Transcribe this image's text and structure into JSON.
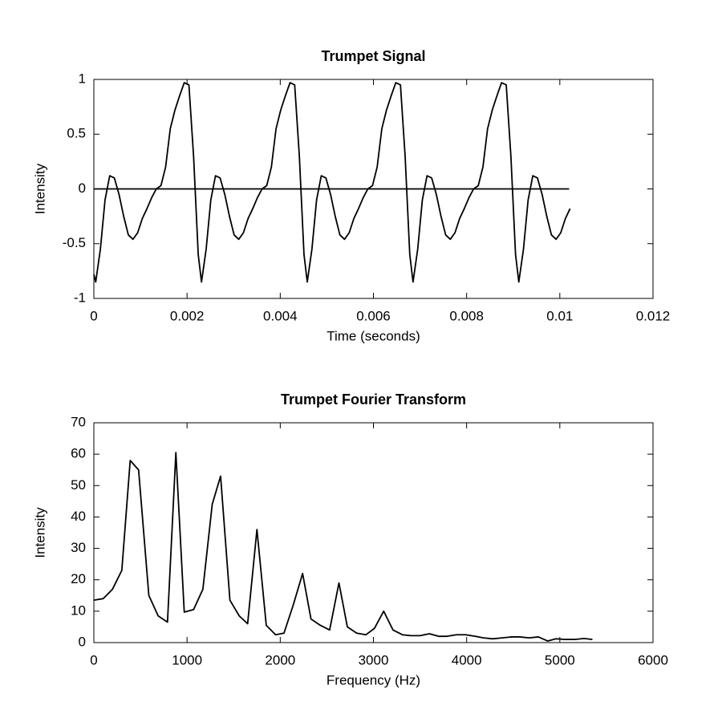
{
  "chart_data": [
    {
      "type": "line",
      "title": "Trumpet Signal",
      "x_label": "Time (seconds)",
      "y_label": "Intensity",
      "xlim": [
        0,
        0.012
      ],
      "ylim": [
        -1,
        1
      ],
      "xticks": [
        0,
        0.002,
        0.004,
        0.006,
        0.008,
        0.01,
        0.012
      ],
      "yticks": [
        -1,
        -0.5,
        0,
        0.5,
        1
      ],
      "series": [
        {
          "color": "#000000",
          "x": [
            0,
            4e-05,
            0.00014,
            0.00024,
            0.00034,
            0.00044,
            0.00054,
            0.00064,
            0.00074,
            0.00084,
            0.00094,
            0.00104,
            0.00114,
            0.00124,
            0.00134,
            0.00144,
            0.00154,
            0.00164,
            0.00174,
            0.00184,
            0.00194,
            0.00204,
            0.00214,
            0.00224,
            0.00231,
            0.00241,
            0.00251,
            0.00261,
            0.00271,
            0.00281,
            0.00291,
            0.00301,
            0.00311,
            0.00321,
            0.00331,
            0.00341,
            0.00351,
            0.00361,
            0.00371,
            0.00381,
            0.00391,
            0.00401,
            0.00411,
            0.00421,
            0.00431,
            0.00441,
            0.00451,
            0.00458,
            0.00468,
            0.00478,
            0.00488,
            0.00498,
            0.00508,
            0.00518,
            0.00528,
            0.00538,
            0.00548,
            0.00558,
            0.00568,
            0.00578,
            0.00588,
            0.00598,
            0.00608,
            0.00618,
            0.00628,
            0.00638,
            0.00648,
            0.00658,
            0.00668,
            0.00678,
            0.00685,
            0.00695,
            0.00705,
            0.00715,
            0.00725,
            0.00735,
            0.00745,
            0.00755,
            0.00765,
            0.00775,
            0.00785,
            0.00795,
            0.00805,
            0.00815,
            0.00825,
            0.00835,
            0.00845,
            0.00855,
            0.00865,
            0.00875,
            0.00885,
            0.00895,
            0.00905,
            0.00912,
            0.00922,
            0.00932,
            0.00942,
            0.00952,
            0.00962,
            0.00972,
            0.00982,
            0.00992,
            0.01002,
            0.01012,
            0.01022
          ],
          "values": [
            -0.78,
            -0.85,
            -0.55,
            -0.1,
            0.12,
            0.1,
            -0.05,
            -0.25,
            -0.42,
            -0.46,
            -0.4,
            -0.27,
            -0.18,
            -0.08,
            0,
            0.03,
            0.2,
            0.55,
            0.72,
            0.85,
            0.97,
            0.95,
            0.3,
            -0.6,
            -0.85,
            -0.55,
            -0.1,
            0.12,
            0.1,
            -0.05,
            -0.25,
            -0.42,
            -0.46,
            -0.4,
            -0.27,
            -0.18,
            -0.08,
            0,
            0.03,
            0.2,
            0.55,
            0.72,
            0.85,
            0.97,
            0.95,
            0.3,
            -0.6,
            -0.85,
            -0.55,
            -0.1,
            0.12,
            0.1,
            -0.05,
            -0.25,
            -0.42,
            -0.46,
            -0.4,
            -0.27,
            -0.18,
            -0.08,
            0,
            0.03,
            0.2,
            0.55,
            0.72,
            0.85,
            0.97,
            0.95,
            0.3,
            -0.6,
            -0.85,
            -0.55,
            -0.1,
            0.12,
            0.1,
            -0.05,
            -0.25,
            -0.42,
            -0.46,
            -0.4,
            -0.27,
            -0.18,
            -0.08,
            0,
            0.03,
            0.2,
            0.55,
            0.72,
            0.85,
            0.97,
            0.95,
            0.3,
            -0.6,
            -0.85,
            -0.55,
            -0.1,
            0.12,
            0.1,
            -0.05,
            -0.25,
            -0.42,
            -0.46,
            -0.4,
            -0.27,
            -0.18
          ]
        },
        {
          "color": "#000000",
          "x": [
            0,
            0.0102
          ],
          "values": [
            0,
            0
          ]
        }
      ]
    },
    {
      "type": "line",
      "title": "Trumpet Fourier Transform",
      "x_label": "Frequency (Hz)",
      "y_label": "Intensity",
      "xlim": [
        0,
        6000
      ],
      "ylim": [
        0,
        70
      ],
      "xticks": [
        0,
        1000,
        2000,
        3000,
        4000,
        5000,
        6000
      ],
      "yticks": [
        0,
        10,
        20,
        30,
        40,
        50,
        60,
        70
      ],
      "series": [
        {
          "color": "#000000",
          "x": [
            0,
            100,
            200,
            300,
            390,
            480,
            590,
            690,
            790,
            880,
            970,
            1070,
            1170,
            1270,
            1360,
            1460,
            1560,
            1650,
            1750,
            1850,
            1950,
            2040,
            2140,
            2240,
            2330,
            2430,
            2530,
            2630,
            2720,
            2820,
            2920,
            3010,
            3110,
            3210,
            3310,
            3400,
            3500,
            3600,
            3700,
            3790,
            3890,
            3990,
            4090,
            4180,
            4280,
            4380,
            4480,
            4570,
            4670,
            4770,
            4870,
            4960,
            5060,
            5160,
            5260,
            5350
          ],
          "values": [
            13.5,
            14,
            17,
            23,
            58,
            55,
            15,
            8.5,
            6.5,
            60.5,
            9.7,
            10.5,
            17,
            44,
            53,
            13.5,
            8.5,
            6,
            36,
            5.5,
            2.5,
            3,
            12,
            22,
            7.5,
            5.5,
            4,
            19,
            5,
            3,
            2.5,
            4.5,
            10,
            4,
            2.5,
            2.2,
            2.2,
            2.8,
            2,
            2,
            2.5,
            2.5,
            2,
            1.5,
            1.2,
            1.5,
            1.8,
            1.8,
            1.5,
            1.8,
            0.5,
            1.2,
            1,
            1,
            1.3,
            1
          ]
        }
      ]
    }
  ]
}
